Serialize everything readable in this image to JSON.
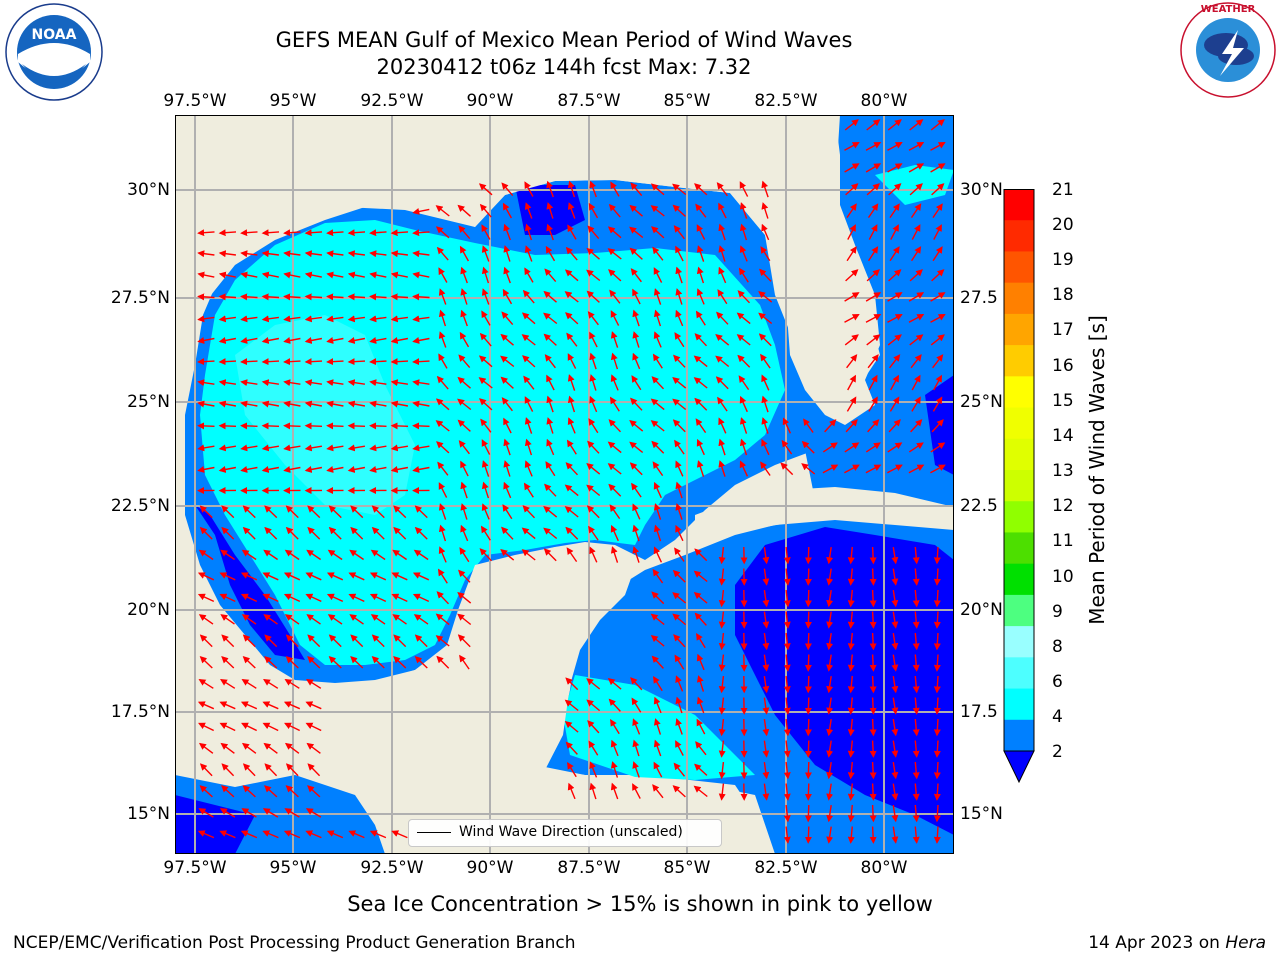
{
  "header": {
    "title_line1": "GEFS MEAN Gulf of Mexico Mean Period of Wind Waves",
    "title_line2": "20230412 t06z 144h fcst   Max: 7.32"
  },
  "logos": {
    "left": {
      "text": "NOAA",
      "ring_text": "NATIONAL OCEANIC AND ATMOSPHERIC ADMINISTRATION · U.S. DEPARTMENT OF COMMERCE"
    },
    "right": {
      "ring_text": "NATIONAL WEATHER SERVICE"
    }
  },
  "map": {
    "lon_labels": [
      "97.5°W",
      "95°W",
      "92.5°W",
      "90°W",
      "87.5°W",
      "85°W",
      "82.5°W",
      "80°W"
    ],
    "lat_labels_left": [
      "30°N",
      "27.5°N",
      "25°N",
      "22.5°N",
      "20°N",
      "17.5°N",
      "15°N"
    ],
    "lat_labels_right": [
      "30°N",
      "27.5",
      "25°N",
      "22.5",
      "20°N",
      "17.5",
      "15°N"
    ],
    "legend_text": "Wind Wave Direction (unscaled)",
    "colors": {
      "land": "#efedde",
      "period_2_4": "#0080ff",
      "period_4_6": "#00ffff",
      "period_6_8": "#4dffff",
      "below_2": "#0000ff",
      "arrows": "#ff0000",
      "grid": "#b0b0b0",
      "coast": "#000000"
    },
    "lon_range": [
      -98,
      -78.25
    ],
    "lat_range": [
      14,
      31.75
    ]
  },
  "colorbar": {
    "label": "Mean Period of Wind Waves [s]",
    "ticks": [
      "21",
      "20",
      "19",
      "18",
      "17",
      "16",
      "15",
      "14",
      "13",
      "12",
      "11",
      "10",
      "9",
      "8",
      "6",
      "4",
      "2"
    ],
    "colors": [
      "#ff0000",
      "#ff2a00",
      "#ff5500",
      "#ff8000",
      "#ffa500",
      "#ffcc00",
      "#ffff00",
      "#f0ff00",
      "#e0ff00",
      "#cdff00",
      "#90ff00",
      "#4ddf00",
      "#00e000",
      "#4dff80",
      "#99ffff",
      "#4dffff",
      "#00ffff",
      "#0080ff"
    ],
    "extend_color": "#0000ff"
  },
  "captions": {
    "sea_ice": "Sea Ice Concentration > 15% is shown in pink to yellow",
    "credit": "NCEP/EMC/Verification Post Processing Product Generation Branch",
    "date": "14 Apr 2023 on ",
    "machine": "Hera"
  }
}
